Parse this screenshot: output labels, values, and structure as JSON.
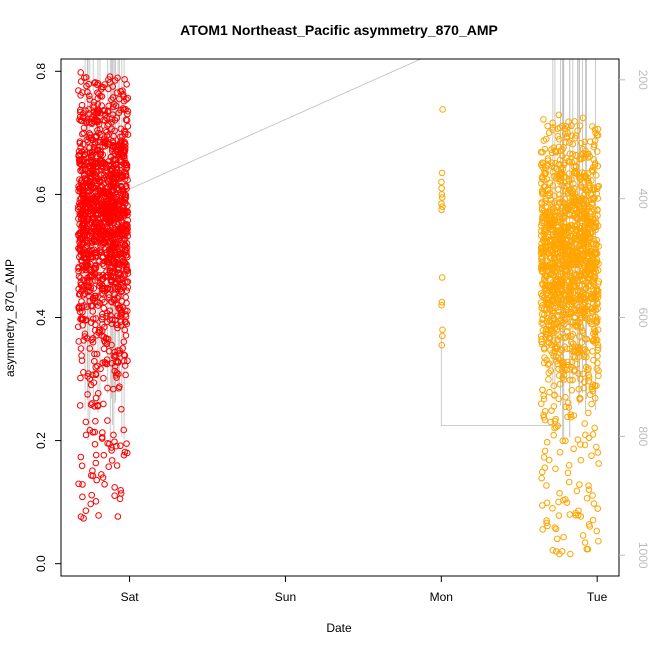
{
  "chart_data": {
    "type": "scatter",
    "title": "ATOM1 Northeast_Pacific asymmetry_870_AMP",
    "xlabel": "Date",
    "ylabel": "asymmetry_870_AMP",
    "x_ticks": [
      {
        "label": "Sat",
        "day": 1
      },
      {
        "label": "Sun",
        "day": 2
      },
      {
        "label": "Mon",
        "day": 3
      },
      {
        "label": "Tue",
        "day": 4
      }
    ],
    "xlim_days": [
      0.56,
      4.14
    ],
    "ylim": [
      -0.02,
      0.82
    ],
    "y_ticks": [
      0.0,
      0.2,
      0.4,
      0.6,
      0.8
    ],
    "y_right_ticks": [
      200,
      400,
      600,
      800,
      1000
    ],
    "y_right_lim": [
      1035,
      165
    ],
    "grid": false,
    "series": [
      {
        "color": "#ff0000",
        "x_range_days": [
          0.67,
          0.99
        ],
        "y_center": 0.57,
        "y_spread": 0.1,
        "y_min": 0.068,
        "y_max": 0.8,
        "n_points": 1400
      },
      {
        "color": "#ffa500",
        "x_range_days": [
          3.64,
          4.01
        ],
        "y_center": 0.5,
        "y_spread": 0.1,
        "y_min": 0.01,
        "y_max": 0.73,
        "n_points": 1400
      },
      {
        "color": "#ffa500",
        "x_range_days": [
          3.0,
          3.01
        ],
        "values": [
          0.738,
          0.635,
          0.62,
          0.61,
          0.6,
          0.595,
          0.585,
          0.58,
          0.575,
          0.465,
          0.425,
          0.42,
          0.38,
          0.37,
          0.355
        ]
      }
    ],
    "overlay_line": {
      "color": "#bdbdbd",
      "description_ref": "right_axis",
      "points": [
        [
          0.99,
          385
        ],
        [
          3.3,
          165
        ],
        [
          3.0,
          630
        ],
        [
          3.0,
          782
        ],
        [
          3.78,
          782
        ]
      ]
    }
  }
}
